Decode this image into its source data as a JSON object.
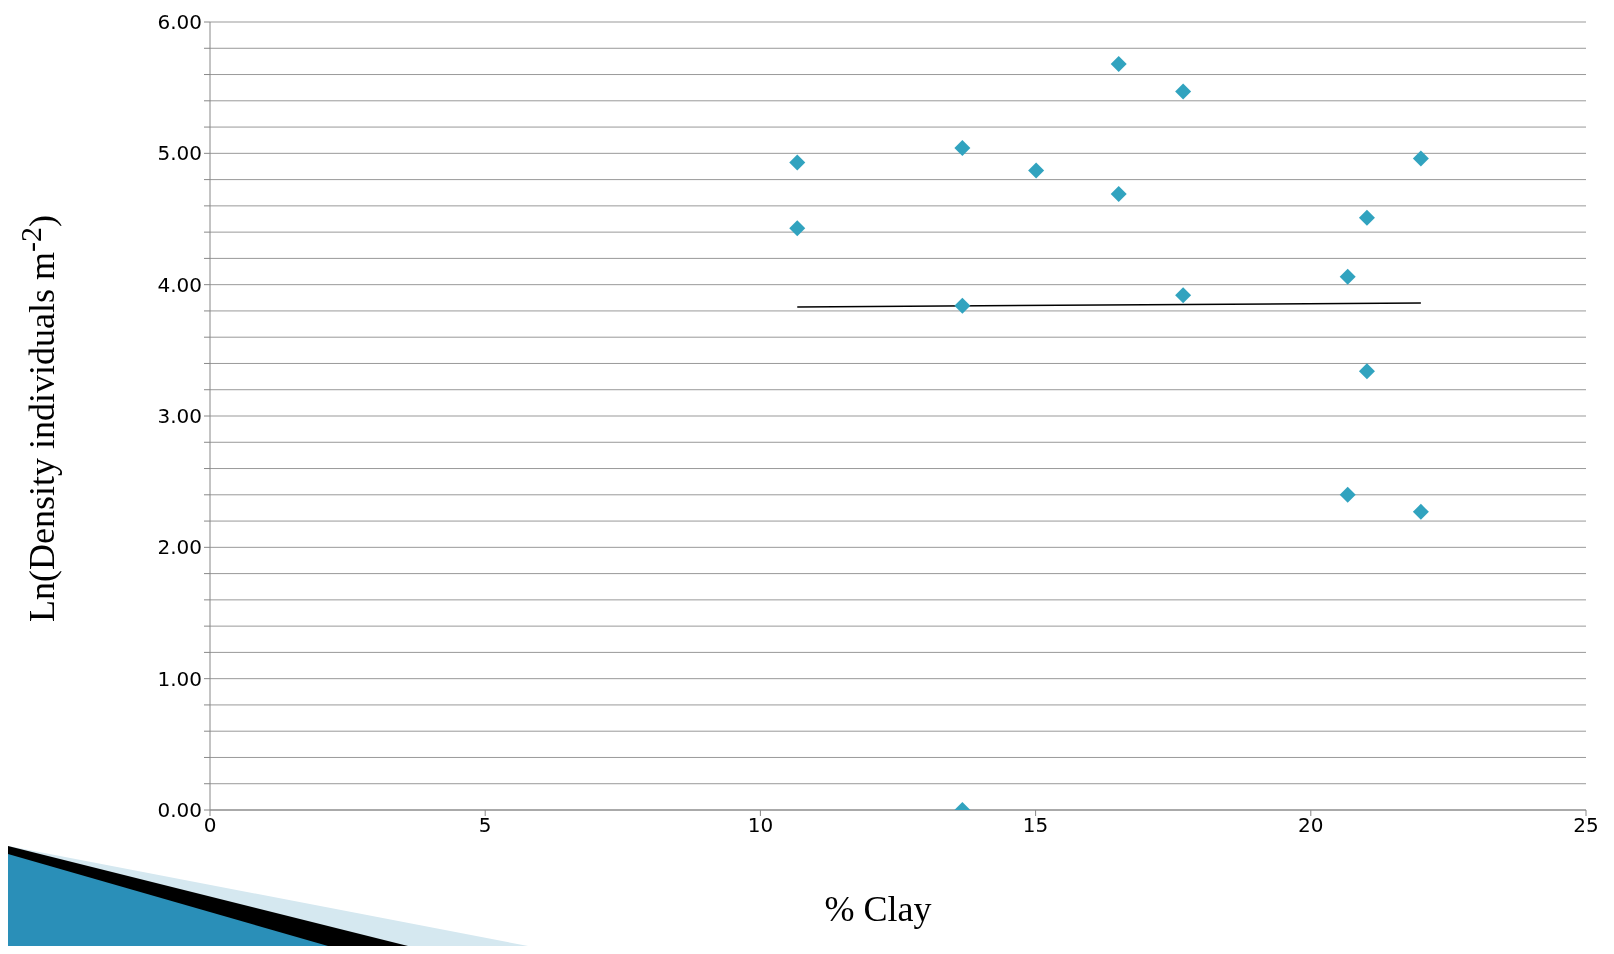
{
  "chart_data": {
    "type": "scatter",
    "xlabel": "% Clay",
    "ylabel": "Ln(Density individuals m$^{-2}$)",
    "xlim": [
      0,
      25
    ],
    "xticks": [
      0,
      5,
      10,
      15,
      20,
      25
    ],
    "ylim": [
      0,
      6
    ],
    "yticks": [
      {
        "value": 0,
        "label": "0.00"
      },
      {
        "value": 0.2,
        "label": null
      },
      {
        "value": 0.4,
        "label": null
      },
      {
        "value": 0.6,
        "label": null
      },
      {
        "value": 0.8,
        "label": null
      },
      {
        "value": 1,
        "label": "1.00"
      },
      {
        "value": 1.2,
        "label": null
      },
      {
        "value": 1.4,
        "label": null
      },
      {
        "value": 1.6,
        "label": null
      },
      {
        "value": 1.8,
        "label": null
      },
      {
        "value": 2,
        "label": "2.00"
      },
      {
        "value": 2.2,
        "label": null
      },
      {
        "value": 2.4,
        "label": null
      },
      {
        "value": 2.6,
        "label": null
      },
      {
        "value": 2.8,
        "label": null
      },
      {
        "value": 3,
        "label": "3.00"
      },
      {
        "value": 3.2,
        "label": null
      },
      {
        "value": 3.4,
        "label": null
      },
      {
        "value": 3.6,
        "label": null
      },
      {
        "value": 3.8,
        "label": null
      },
      {
        "value": 4,
        "label": "4.00"
      },
      {
        "value": 4.2,
        "label": null
      },
      {
        "value": 4.4,
        "label": null
      },
      {
        "value": 4.6,
        "label": null
      },
      {
        "value": 4.8,
        "label": null
      },
      {
        "value": 5,
        "label": "5.00"
      },
      {
        "value": 5.2,
        "label": null
      },
      {
        "value": 5.4,
        "label": null
      },
      {
        "value": 5.6,
        "label": null
      },
      {
        "value": 5.8,
        "label": null
      },
      {
        "value": 6,
        "label": "6.00"
      }
    ],
    "grid": "y",
    "series": [
      {
        "color": "#31a3bf",
        "marker": "diamond",
        "x": [
          10.67,
          10.67,
          13.67,
          13.67,
          13.67,
          15.01,
          16.51,
          16.51,
          17.68,
          17.68,
          20.67,
          20.67,
          21.02,
          21.02,
          22.0,
          22.0
        ],
        "values": [
          4.93,
          4.43,
          5.04,
          3.84,
          0,
          4.87,
          5.68,
          4.69,
          5.47,
          3.92,
          4.06,
          2.4,
          4.51,
          3.34,
          4.96,
          2.27
        ]
      },
      {
        "type": "line",
        "color": "#000000",
        "marker": "none",
        "line_style": "solid",
        "x": [
          10.67,
          22.0
        ],
        "values": [
          3.83,
          3.86
        ]
      }
    ]
  }
}
